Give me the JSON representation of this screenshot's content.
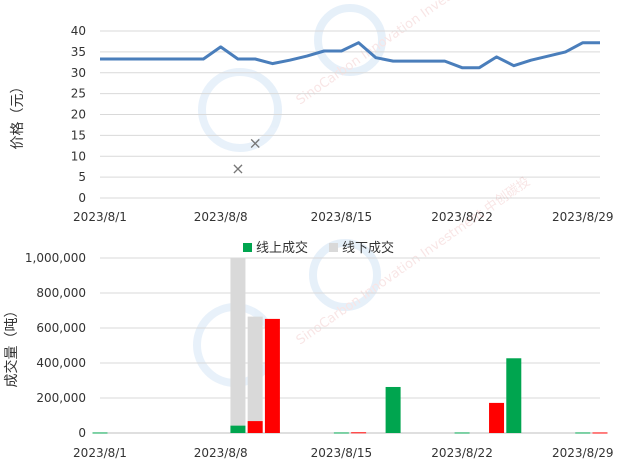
{
  "chart_data": [
    {
      "type": "line",
      "ylabel": "价格（元）",
      "ylim": [
        0,
        40
      ],
      "yticks": [
        0,
        5,
        10,
        15,
        20,
        25,
        30,
        35,
        40
      ],
      "x_tick_labels": [
        "2023/8/1",
        "2023/8/8",
        "2023/8/15",
        "2023/8/22",
        "2023/8/29"
      ],
      "grid": true,
      "line_color": "#4a7ebb",
      "series": [
        {
          "dates": [
            "2023/8/1",
            "2023/8/2",
            "2023/8/3",
            "2023/8/4",
            "2023/8/5",
            "2023/8/6",
            "2023/8/7",
            "2023/8/8",
            "2023/8/9",
            "2023/8/10",
            "2023/8/11",
            "2023/8/12",
            "2023/8/13",
            "2023/8/14",
            "2023/8/15",
            "2023/8/16",
            "2023/8/17",
            "2023/8/18",
            "2023/8/19",
            "2023/8/20",
            "2023/8/21",
            "2023/8/22",
            "2023/8/23",
            "2023/8/24",
            "2023/8/25",
            "2023/8/26",
            "2023/8/27",
            "2023/8/28",
            "2023/8/29",
            "2023/8/30"
          ],
          "values": [
            33.3,
            33.3,
            33.3,
            33.3,
            33.3,
            33.3,
            33.3,
            36.2,
            33.3,
            33.3,
            32.2,
            33.0,
            34.0,
            35.2,
            35.2,
            37.2,
            33.6,
            32.8,
            32.8,
            32.8,
            32.8,
            31.2,
            31.2,
            33.8,
            31.7,
            33.0,
            34.0,
            35.0,
            37.2,
            37.2
          ]
        }
      ],
      "markers": {
        "symbol": "×",
        "color": "#777777",
        "points": [
          {
            "date": "2023/8/9",
            "value": 7
          },
          {
            "date": "2023/8/10",
            "value": 13
          }
        ]
      },
      "watermark": "SinoCarbon Innovation Investment 中创碳投"
    },
    {
      "type": "bar",
      "ylabel": "成交量（吨）",
      "ylim": [
        0,
        1000000
      ],
      "yticks": [
        "0",
        "200,000",
        "400,000",
        "600,000",
        "800,000",
        "1,000,000"
      ],
      "ytick_values": [
        0,
        200000,
        400000,
        600000,
        800000,
        1000000
      ],
      "x_tick_labels": [
        "2023/8/1",
        "2023/8/8",
        "2023/8/15",
        "2023/8/22",
        "2023/8/29"
      ],
      "legend": {
        "placement": "top",
        "entries": [
          {
            "label": "线上成交",
            "color": "#00a54f"
          },
          {
            "label": "线下成交",
            "color": "#d9d9d9"
          }
        ]
      },
      "series": [
        {
          "name": "线上成交",
          "values": [
            {
              "date": "2023/8/1",
              "value": 3000
            },
            {
              "date": "2023/8/9",
              "value": 42000
            },
            {
              "date": "2023/8/10",
              "value": 68000
            },
            {
              "date": "2023/8/11",
              "value": 652000
            },
            {
              "date": "2023/8/15",
              "value": 3000
            },
            {
              "date": "2023/8/16",
              "value": 4000
            },
            {
              "date": "2023/8/18",
              "value": 263000
            },
            {
              "date": "2023/8/22",
              "value": 3000
            },
            {
              "date": "2023/8/24",
              "value": 172000
            },
            {
              "date": "2023/8/25",
              "value": 427000
            },
            {
              "date": "2023/8/29",
              "value": 3000
            },
            {
              "date": "2023/8/30",
              "value": 3000
            }
          ]
        },
        {
          "name": "线下成交",
          "values": [
            {
              "date": "2023/8/9",
              "value": 1000000
            },
            {
              "date": "2023/8/10",
              "value": 665000
            }
          ]
        }
      ],
      "online_bar_colors": {
        "up": "#00a54f",
        "down": "#ff0000"
      },
      "online_bar_direction": [
        "up",
        "up",
        "down",
        "down",
        "up",
        "down",
        "up",
        "up",
        "down",
        "up",
        "up",
        "down"
      ],
      "watermark": "SinoCarbon Innovation Investment 中创碳投"
    }
  ]
}
